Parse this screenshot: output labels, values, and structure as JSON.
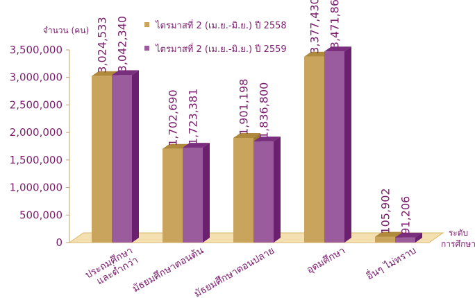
{
  "chart_data": {
    "type": "bar",
    "ylabel": "จำนวน (คน)",
    "xlabel": "ระดับ การศึกษา",
    "xlabel_lines": [
      "ระดับ",
      "การศึกษา"
    ],
    "ylim": [
      0,
      3500000
    ],
    "yticks": [
      "0",
      "500,000",
      "1,000,000",
      "1,500,000",
      "2,000,000",
      "2,500,000",
      "3,000,000",
      "3,500,000"
    ],
    "ytick_values": [
      0,
      500000,
      1000000,
      1500000,
      2000000,
      2500000,
      3000000,
      3500000
    ],
    "categories": [
      "ประถมศึกษา และต่ำกว่า",
      "มัธยมศึกษาตอนต้น",
      "มัธยมศึกษาตอนปลาย",
      "อุดมศึกษา",
      "อื่นๆ ไม่ทราบ"
    ],
    "category_lines": [
      [
        "ประถมศึกษา",
        "และต่ำกว่า"
      ],
      [
        "มัธยมศึกษาตอนต้น"
      ],
      [
        "มัธยมศึกษาตอนปลาย"
      ],
      [
        "อุดมศึกษา"
      ],
      [
        "อื่นๆ ไม่ทราบ"
      ]
    ],
    "series": [
      {
        "name": "ไตรมาสที่ 2 (เม.ย.-มิ.ย.) ปี 2558",
        "values": [
          3024533,
          1702690,
          1901198,
          3377430,
          105902
        ],
        "labels": [
          "3,024,533",
          "1,702,690",
          "1,901,198",
          "3,377,430",
          "105,902"
        ],
        "color": "#c9a45c",
        "top_color": "#b08a3c",
        "side_color": "#9c7a34"
      },
      {
        "name": "ไตรมาสที่ 2 (เม.ย.-มิ.ย.) ปี 2559",
        "values": [
          3042340,
          1723381,
          1836800,
          3471860,
          91206
        ],
        "labels": [
          "3,042,340",
          "1,723,381",
          "1,836,800",
          "3,471,860",
          "91,206"
        ],
        "color": "#9b5c9e",
        "top_color": "#7a2f7e",
        "side_color": "#6a1f6f"
      }
    ],
    "legend_position": "top-center",
    "floor_color": "#f3dfb0",
    "axis_text_color": "#7a1e6e"
  }
}
